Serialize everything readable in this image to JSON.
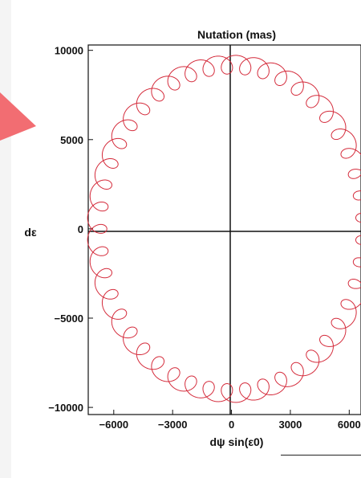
{
  "chart_data": {
    "type": "line",
    "title": "Nutation  (mas)",
    "xlabel": "dψ sin(ε0)",
    "ylabel": "dε",
    "xlim": [
      -7300,
      6600
    ],
    "ylim": [
      -10400,
      10300
    ],
    "x_ticks": [
      -6000,
      -3000,
      0,
      3000,
      6000
    ],
    "x_tick_labels": [
      "−6000",
      "−3000",
      "0",
      "3000",
      "6000"
    ],
    "y_ticks": [
      10000,
      5000,
      0,
      -5000,
      -10000
    ],
    "y_tick_labels": [
      "10000",
      "5000",
      "0",
      "−5000",
      "−10000"
    ],
    "grid": false,
    "series": [
      {
        "description_curve": "ellipse with loops",
        "semi_axis_x": 6850,
        "semi_axis_y": 9200,
        "loop_count": 46,
        "loop_amplitude": 500,
        "color": "#d42a3a"
      }
    ]
  },
  "colors": {
    "curve": "#d42a3a",
    "pointer_arrow": "#f26d72",
    "axes": "#111111"
  }
}
